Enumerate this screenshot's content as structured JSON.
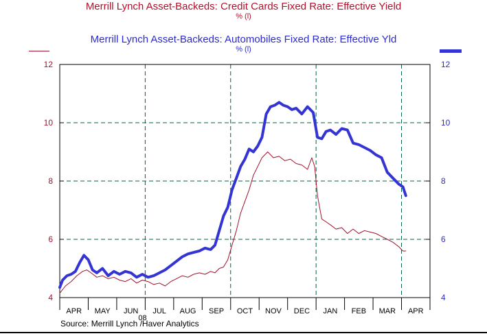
{
  "chart_data": {
    "type": "line",
    "title": "Merrill Lynch Asset-Backeds: Credit Cards Fixed Rate: Effective Yield",
    "title_units": "%    (l)",
    "title2": "Merrill Lynch Asset-Backeds: Automobiles Fixed Rate: Effective Yld",
    "title2_units": "%    (l)",
    "year_label": "08",
    "source": "Source:  Merrill Lynch /Haver Analytics",
    "x_labels": [
      "APR",
      "MAY",
      "JUN",
      "JUL",
      "AUG",
      "SEP",
      "OCT",
      "NOV",
      "DEC",
      "JAN",
      "FEB",
      "MAR",
      "APR"
    ],
    "ylim": [
      4,
      12
    ],
    "y_ticks_left": [
      "4",
      "6",
      "8",
      "10",
      "12"
    ],
    "y_ticks_right": [
      "4",
      "6",
      "8",
      "10",
      "12"
    ],
    "grid": "dashed",
    "colors": {
      "credit_cards": "#a0102a",
      "automobiles": "#3434d4",
      "grid": "#006040"
    },
    "series": [
      {
        "name": "Merrill Lynch Asset-Backeds: Credit Cards Fixed Rate: Effective Yield",
        "x": [
          0,
          0.2,
          0.4,
          0.6,
          0.8,
          0.95,
          1.1,
          1.3,
          1.5,
          1.7,
          1.9,
          2.1,
          2.3,
          2.5,
          2.7,
          2.9,
          3.1,
          3.3,
          3.5,
          3.7,
          3.9,
          4.1,
          4.3,
          4.5,
          4.7,
          4.9,
          5.1,
          5.3,
          5.45,
          5.6,
          5.75,
          5.9,
          6.05,
          6.2,
          6.35,
          6.5,
          6.65,
          6.8,
          6.95,
          7.1,
          7.3,
          7.5,
          7.7,
          7.9,
          8.1,
          8.3,
          8.5,
          8.7,
          8.85,
          8.95,
          9.05,
          9.2,
          9.35,
          9.5,
          9.7,
          9.9,
          10.1,
          10.3,
          10.5,
          10.7,
          10.9,
          11.1,
          11.3,
          11.5,
          11.7,
          11.9,
          12.05,
          12.15
        ],
        "values": [
          4.15,
          4.4,
          4.55,
          4.75,
          4.9,
          4.95,
          4.85,
          4.7,
          4.75,
          4.65,
          4.7,
          4.6,
          4.55,
          4.65,
          4.5,
          4.6,
          4.55,
          4.45,
          4.5,
          4.4,
          4.55,
          4.65,
          4.75,
          4.7,
          4.8,
          4.85,
          4.8,
          4.9,
          4.85,
          5.0,
          5.05,
          5.3,
          5.8,
          6.3,
          6.9,
          7.3,
          7.7,
          8.2,
          8.5,
          8.8,
          9.0,
          8.8,
          8.85,
          8.7,
          8.75,
          8.6,
          8.55,
          8.4,
          8.8,
          8.5,
          7.5,
          6.7,
          6.6,
          6.5,
          6.35,
          6.4,
          6.2,
          6.35,
          6.2,
          6.3,
          6.25,
          6.2,
          6.1,
          6.0,
          5.9,
          5.75,
          5.6,
          5.6
        ]
      },
      {
        "name": "Merrill Lynch Asset-Backeds: Automobiles Fixed Rate: Effective Yld",
        "x": [
          0,
          0.1,
          0.25,
          0.4,
          0.55,
          0.7,
          0.85,
          1.0,
          1.15,
          1.3,
          1.5,
          1.7,
          1.9,
          2.1,
          2.3,
          2.5,
          2.7,
          2.9,
          3.1,
          3.3,
          3.5,
          3.7,
          3.9,
          4.1,
          4.3,
          4.5,
          4.7,
          4.9,
          5.1,
          5.3,
          5.45,
          5.6,
          5.75,
          5.9,
          6.05,
          6.2,
          6.35,
          6.5,
          6.65,
          6.8,
          6.95,
          7.1,
          7.25,
          7.4,
          7.55,
          7.7,
          7.85,
          8.0,
          8.15,
          8.3,
          8.5,
          8.7,
          8.9,
          9.05,
          9.2,
          9.35,
          9.5,
          9.7,
          9.9,
          10.1,
          10.3,
          10.5,
          10.7,
          10.9,
          11.1,
          11.3,
          11.5,
          11.7,
          11.9,
          12.05,
          12.15
        ],
        "values": [
          4.35,
          4.6,
          4.75,
          4.8,
          4.9,
          5.2,
          5.45,
          5.3,
          4.95,
          4.85,
          5.0,
          4.75,
          4.9,
          4.8,
          4.9,
          4.85,
          4.7,
          4.8,
          4.7,
          4.75,
          4.85,
          4.95,
          5.1,
          5.25,
          5.4,
          5.5,
          5.55,
          5.6,
          5.7,
          5.65,
          5.8,
          6.3,
          6.8,
          7.1,
          7.7,
          8.1,
          8.5,
          8.75,
          9.1,
          9.0,
          9.2,
          9.5,
          10.3,
          10.55,
          10.6,
          10.7,
          10.6,
          10.55,
          10.45,
          10.5,
          10.3,
          10.55,
          10.35,
          9.5,
          9.45,
          9.7,
          9.75,
          9.6,
          9.8,
          9.75,
          9.3,
          9.25,
          9.15,
          9.05,
          8.9,
          8.8,
          8.3,
          8.1,
          7.9,
          7.8,
          7.5
        ]
      }
    ]
  }
}
